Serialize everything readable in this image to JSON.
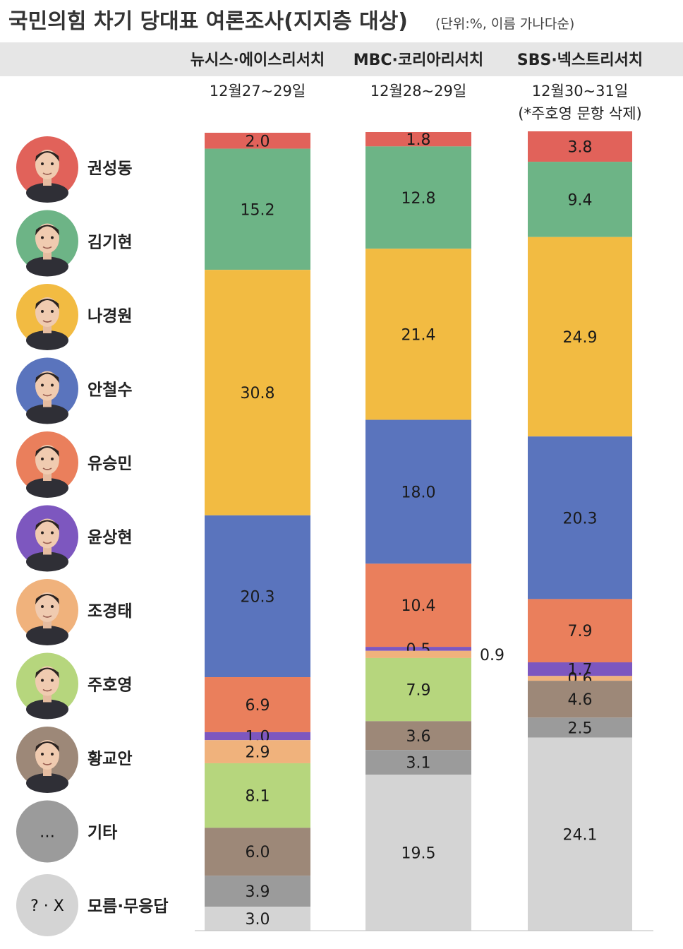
{
  "chart_data": {
    "type": "bar",
    "stacked": true,
    "title": "국민의힘 차기 당대표 여론조사(지지층 대상)",
    "subtitle": "(단위:%, 이름 가나다순)",
    "ylim": [
      0,
      100
    ],
    "categories": [
      {
        "pollster": "뉴시스·에이스리서치",
        "dates": "12월27~29일",
        "note": ""
      },
      {
        "pollster": "MBC·코리아리서치",
        "dates": "12월28~29일",
        "note": ""
      },
      {
        "pollster": "SBS·넥스트리서치",
        "dates": "12월30~31일",
        "note": "(*주호영 문항 삭제)"
      }
    ],
    "series": [
      {
        "name": "권성동",
        "color": "#e1625a",
        "values": [
          2.0,
          1.8,
          3.8
        ]
      },
      {
        "name": "김기현",
        "color": "#6db486",
        "values": [
          15.2,
          12.8,
          9.4
        ]
      },
      {
        "name": "나경원",
        "color": "#f2bb42",
        "values": [
          30.8,
          21.4,
          24.9
        ]
      },
      {
        "name": "안철수",
        "color": "#5a74bd",
        "values": [
          20.3,
          18.0,
          20.3
        ]
      },
      {
        "name": "유승민",
        "color": "#ea7f5c",
        "values": [
          6.9,
          10.4,
          7.9
        ]
      },
      {
        "name": "윤상현",
        "color": "#7d57bf",
        "values": [
          1.0,
          0.5,
          1.7
        ]
      },
      {
        "name": "조경태",
        "color": "#f0b27c",
        "values": [
          2.9,
          0.9,
          0.6
        ]
      },
      {
        "name": "주호영",
        "color": "#b6d67d",
        "values": [
          8.1,
          7.9,
          null
        ]
      },
      {
        "name": "황교안",
        "color": "#9d8878",
        "values": [
          6.0,
          3.6,
          4.6
        ]
      },
      {
        "name": "기타",
        "color": "#9b9b9b",
        "values": [
          3.9,
          3.1,
          2.5
        ]
      },
      {
        "name": "모름·무응답",
        "color": "#d4d4d4",
        "values": [
          3.0,
          19.5,
          24.1
        ]
      }
    ],
    "legend": [
      {
        "name": "권성동",
        "color": "#e1625a",
        "icon": "person-photo"
      },
      {
        "name": "김기현",
        "color": "#6db486",
        "icon": "person-photo"
      },
      {
        "name": "나경원",
        "color": "#f2bb42",
        "icon": "person-photo"
      },
      {
        "name": "안철수",
        "color": "#5a74bd",
        "icon": "person-photo"
      },
      {
        "name": "유승민",
        "color": "#ea7f5c",
        "icon": "person-photo"
      },
      {
        "name": "윤상현",
        "color": "#7d57bf",
        "icon": "person-photo"
      },
      {
        "name": "조경태",
        "color": "#f0b27c",
        "icon": "person-photo"
      },
      {
        "name": "주호영",
        "color": "#b6d67d",
        "icon": "person-photo"
      },
      {
        "name": "황교안",
        "color": "#9d8878",
        "icon": "person-photo"
      },
      {
        "name": "기타",
        "color": "#9b9b9b",
        "icon": "ellipsis",
        "text": "…"
      },
      {
        "name": "모름·무응답",
        "color": "#d4d4d4",
        "icon": "question-x",
        "text": "? · X"
      }
    ],
    "legend_placement": "left",
    "grid": false
  }
}
